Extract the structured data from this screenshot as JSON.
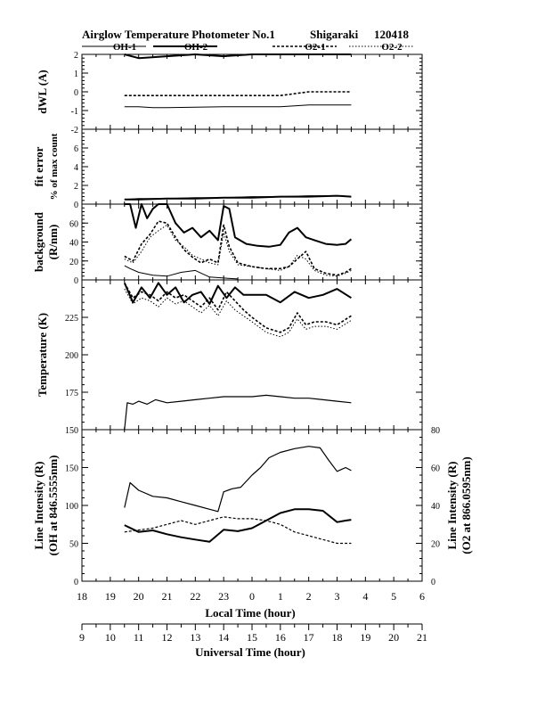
{
  "header": {
    "title": "Airglow Temperature Photometer No.1",
    "station": "Shigaraki",
    "date_code": "120418",
    "legend": [
      "OH-1",
      "OH-2",
      "O2-1",
      "O2-2"
    ]
  },
  "styles": {
    "OH-1": "solid-thin",
    "OH-2": "solid-thick",
    "O2-1": "dashed-thick",
    "O2-2": "dotted-thin",
    "OH": "solid",
    "O2": "dashed",
    "T-ref": "solid"
  },
  "chart_data": [
    {
      "type": "line",
      "panel": "dwl",
      "ylabel": "dWL (A)",
      "ylim": [
        -2,
        2
      ],
      "yticks": [
        "-2",
        "-1",
        "0",
        "1",
        "2"
      ],
      "series": [
        {
          "name": "OH-1",
          "x": [
            19.5,
            20.0,
            20.5,
            21.0,
            23.0,
            23.5,
            0.5,
            1.0,
            2.0,
            3.0,
            3.5
          ],
          "y": [
            -0.8,
            -0.8,
            -0.85,
            -0.85,
            -0.8,
            -0.8,
            -0.8,
            -0.8,
            -0.7,
            -0.7,
            -0.7
          ]
        },
        {
          "name": "O2-1",
          "x": [
            19.5,
            0.5,
            1.0,
            1.5,
            2.0,
            3.5
          ],
          "y": [
            -0.2,
            -0.2,
            -0.2,
            -0.1,
            0.0,
            0.0
          ]
        },
        {
          "name": "OH-2",
          "x": [
            19.5,
            20.0,
            21.0,
            22.0,
            23.0,
            0.0,
            2.0,
            3.5
          ],
          "y": [
            2.0,
            1.8,
            1.9,
            2.0,
            1.9,
            2.0,
            2.0,
            2.0
          ]
        }
      ]
    },
    {
      "type": "line",
      "panel": "fit_error",
      "ylabel": "fit error",
      "ylabel2": "% of max count",
      "ylim": [
        0,
        8
      ],
      "yticks": [
        "0",
        "2",
        "4",
        "6"
      ],
      "series": [
        {
          "name": "OH-1",
          "x": [
            19.5,
            20.0,
            21.0,
            22.0,
            23.0,
            0.0,
            1.0,
            2.0,
            3.0,
            3.5
          ],
          "y": [
            0.5,
            0.6,
            0.6,
            0.7,
            0.7,
            0.8,
            0.8,
            0.9,
            0.9,
            0.8
          ]
        },
        {
          "name": "OH-2",
          "x": [
            19.5,
            20.0,
            21.0,
            22.0,
            23.0,
            0.0,
            1.0,
            2.0,
            3.0,
            3.5
          ],
          "y": [
            0.5,
            0.5,
            0.6,
            0.6,
            0.7,
            0.7,
            0.8,
            0.8,
            0.9,
            0.8
          ]
        }
      ]
    },
    {
      "type": "line",
      "panel": "background",
      "ylabel": "background",
      "ylabel2": "(R/nm)",
      "ylim": [
        0,
        80
      ],
      "yticks": [
        "0",
        "20",
        "40",
        "60"
      ],
      "series": [
        {
          "name": "OH-2",
          "x": [
            19.5,
            19.7,
            19.9,
            20.1,
            20.3,
            20.5,
            20.7,
            21.0,
            21.3,
            21.6,
            21.9,
            22.2,
            22.5,
            22.8,
            23.0,
            23.2,
            23.4,
            23.8,
            0.2,
            0.6,
            1.0,
            1.3,
            1.6,
            1.9,
            2.2,
            2.6,
            3.0,
            3.3,
            3.5
          ],
          "y": [
            80,
            80,
            55,
            80,
            65,
            75,
            80,
            80,
            60,
            50,
            55,
            45,
            52,
            42,
            78,
            75,
            45,
            38,
            36,
            35,
            37,
            50,
            55,
            45,
            42,
            38,
            37,
            38,
            43
          ]
        },
        {
          "name": "O2-1",
          "x": [
            19.5,
            19.8,
            20.1,
            20.4,
            20.7,
            21.0,
            21.3,
            21.6,
            21.9,
            22.2,
            22.5,
            22.8,
            23.0,
            23.2,
            23.5,
            0.0,
            0.5,
            1.0,
            1.3,
            1.6,
            1.9,
            2.2,
            2.6,
            3.0,
            3.3,
            3.5
          ],
          "y": [
            25,
            20,
            38,
            48,
            62,
            60,
            45,
            32,
            24,
            18,
            22,
            18,
            58,
            35,
            18,
            14,
            12,
            12,
            14,
            22,
            30,
            12,
            7,
            5,
            8,
            12
          ]
        },
        {
          "name": "O2-2",
          "x": [
            19.5,
            19.8,
            20.1,
            20.4,
            20.7,
            21.0,
            21.3,
            21.6,
            21.9,
            22.2,
            22.5,
            22.8,
            23.0,
            23.2,
            23.5,
            0.0,
            0.5,
            1.0,
            1.3,
            1.6,
            1.9,
            2.2,
            2.6,
            3.0,
            3.3,
            3.5
          ],
          "y": [
            22,
            18,
            30,
            45,
            52,
            58,
            42,
            35,
            26,
            22,
            18,
            16,
            50,
            30,
            16,
            14,
            12,
            10,
            14,
            26,
            22,
            10,
            5,
            4,
            7,
            10
          ]
        },
        {
          "name": "OH-1",
          "x": [
            19.5,
            19.7,
            20.0,
            20.5,
            21.0,
            21.5,
            22.0,
            22.5,
            23.0,
            23.5
          ],
          "y": [
            15,
            12,
            8,
            5,
            4,
            8,
            10,
            3,
            2,
            1
          ]
        }
      ]
    },
    {
      "type": "line",
      "panel": "temperature",
      "ylabel": "Temperature (K)",
      "ylim": [
        150,
        250
      ],
      "yticks": [
        "150",
        "175",
        "200",
        "225"
      ],
      "series": [
        {
          "name": "OH-2",
          "x": [
            19.5,
            19.8,
            20.1,
            20.4,
            20.7,
            21.0,
            21.3,
            21.6,
            21.9,
            22.2,
            22.5,
            22.8,
            23.1,
            23.4,
            23.7,
            0.0,
            0.5,
            1.0,
            1.5,
            2.0,
            2.5,
            3.0,
            3.5
          ],
          "y": [
            248,
            235,
            245,
            238,
            248,
            240,
            245,
            235,
            240,
            242,
            234,
            246,
            238,
            245,
            240,
            240,
            240,
            235,
            242,
            238,
            240,
            244,
            238
          ]
        },
        {
          "name": "O2-1",
          "x": [
            19.5,
            19.8,
            20.1,
            20.4,
            20.7,
            21.0,
            21.3,
            21.6,
            21.9,
            22.2,
            22.5,
            22.8,
            23.1,
            23.4,
            23.7,
            0.0,
            0.5,
            1.0,
            1.3,
            1.6,
            1.9,
            2.2,
            2.6,
            3.0,
            3.5
          ],
          "y": [
            248,
            238,
            242,
            240,
            236,
            242,
            238,
            240,
            236,
            232,
            238,
            230,
            242,
            236,
            230,
            225,
            218,
            215,
            218,
            228,
            220,
            222,
            222,
            220,
            226
          ]
        },
        {
          "name": "O2-2",
          "x": [
            19.5,
            19.8,
            20.1,
            20.4,
            20.7,
            21.0,
            21.3,
            21.6,
            21.9,
            22.2,
            22.5,
            22.8,
            23.1,
            23.4,
            23.7,
            0.0,
            0.5,
            1.0,
            1.3,
            1.6,
            1.9,
            2.2,
            2.6,
            3.0,
            3.5
          ],
          "y": [
            244,
            234,
            238,
            236,
            232,
            238,
            234,
            236,
            232,
            228,
            233,
            226,
            236,
            230,
            226,
            222,
            215,
            212,
            215,
            224,
            217,
            219,
            219,
            217,
            223
          ]
        },
        {
          "name": "T-ref",
          "x": [
            19.5,
            19.6,
            19.8,
            20.0,
            20.3,
            20.6,
            21.0,
            21.5,
            22.0,
            22.5,
            23.0,
            23.5,
            0.0,
            0.5,
            1.0,
            1.5,
            2.0,
            2.5,
            3.0,
            3.5
          ],
          "y": [
            150,
            168,
            167,
            169,
            167,
            170,
            168,
            169,
            170,
            171,
            172,
            172,
            172,
            173,
            172,
            171,
            171,
            170,
            169,
            168
          ]
        }
      ]
    },
    {
      "type": "line",
      "panel": "intensity",
      "ylabel": "Line Intensity (R)",
      "ylabel2": "(OH at 846.5555nm)",
      "ylabel_right": "Line Intensity (R)",
      "ylabel_right2": "(O2 at 866.0595nm)",
      "ylim": [
        0,
        200
      ],
      "ylim_right": [
        0,
        80
      ],
      "yticks": [
        "0",
        "50",
        "100",
        "150"
      ],
      "yticks_right": [
        "0",
        "20",
        "40",
        "60",
        "80"
      ],
      "series": [
        {
          "name": "OH",
          "axis": "left",
          "x": [
            19.5,
            19.7,
            20.0,
            20.5,
            21.0,
            21.5,
            22.0,
            22.5,
            22.8,
            23.0,
            23.3,
            23.6,
            0.0,
            0.3,
            0.6,
            1.0,
            1.5,
            2.0,
            2.4,
            2.7,
            3.0,
            3.3,
            3.5
          ],
          "y": [
            97,
            130,
            120,
            112,
            110,
            105,
            100,
            95,
            92,
            118,
            122,
            124,
            140,
            150,
            163,
            170,
            175,
            178,
            176,
            160,
            145,
            150,
            146
          ]
        },
        {
          "name": "O2",
          "axis": "right",
          "x": [
            19.5,
            20.0,
            20.5,
            21.0,
            21.5,
            22.0,
            22.5,
            23.0,
            23.5,
            0.0,
            0.5,
            1.0,
            1.5,
            2.0,
            2.5,
            3.0,
            3.5
          ],
          "y": [
            26,
            27,
            28,
            30,
            32,
            30,
            32,
            34,
            33,
            33,
            32,
            30,
            26,
            24,
            22,
            20,
            20
          ]
        },
        {
          "name": "OH-2",
          "axis": "left",
          "x": [
            19.5,
            20.0,
            20.5,
            21.0,
            21.5,
            22.0,
            22.5,
            23.0,
            23.5,
            0.0,
            0.5,
            1.0,
            1.5,
            2.0,
            2.5,
            3.0,
            3.3,
            3.5
          ],
          "y": [
            74,
            65,
            67,
            62,
            58,
            55,
            52,
            68,
            66,
            70,
            80,
            90,
            95,
            95,
            93,
            78,
            80,
            81
          ]
        }
      ]
    }
  ],
  "x_axis": {
    "lt_label": "Local Time (hour)",
    "ut_label": "Universal Time (hour)",
    "lt_ticks": [
      "18",
      "19",
      "20",
      "21",
      "22",
      "23",
      "0",
      "1",
      "2",
      "3",
      "4",
      "5",
      "6"
    ],
    "ut_ticks": [
      "9",
      "10",
      "11",
      "12",
      "13",
      "14",
      "15",
      "16",
      "17",
      "18",
      "19",
      "20",
      "21"
    ],
    "lt_range": [
      18,
      30
    ]
  }
}
